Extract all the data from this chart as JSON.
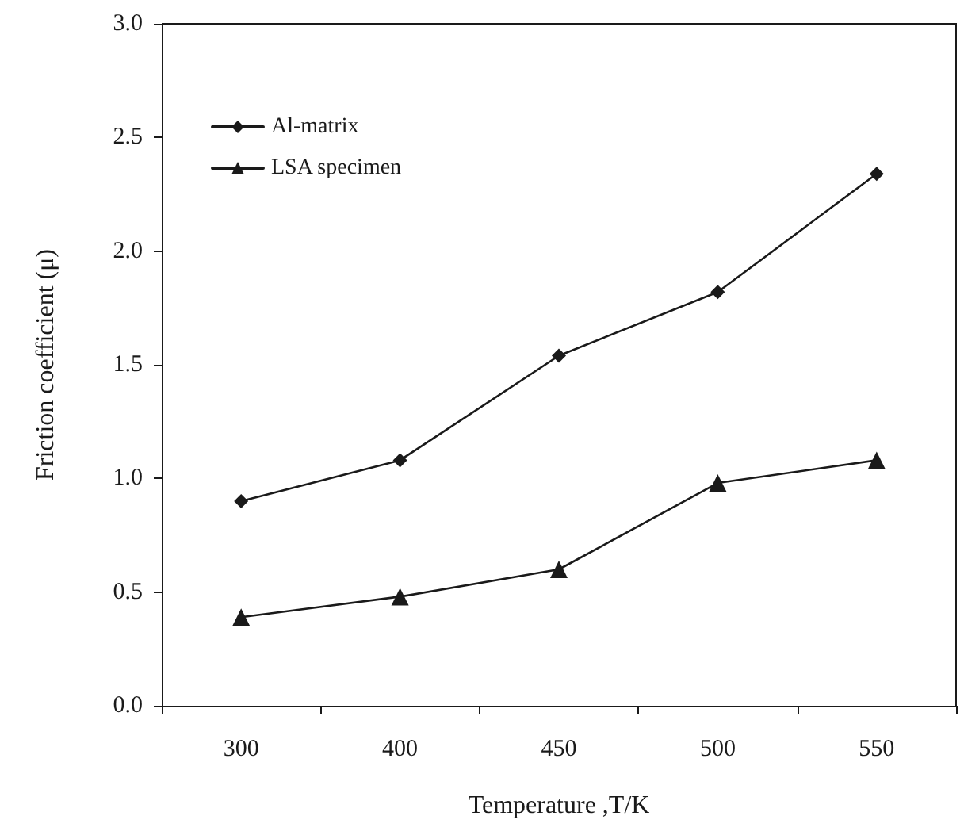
{
  "chart_data": {
    "type": "line",
    "xlabel": "Temperature ,T/K",
    "ylabel": "Friction coefficient (μ)",
    "categories": [
      "300",
      "400",
      "450",
      "500",
      "550"
    ],
    "series": [
      {
        "name": "Al-matrix",
        "color": "#1a1a1a",
        "marker": "diamond",
        "values": [
          0.9,
          1.08,
          1.54,
          1.82,
          2.34
        ]
      },
      {
        "name": "LSA specimen",
        "color": "#1a1a1a",
        "marker": "triangle",
        "values": [
          0.39,
          0.48,
          0.6,
          0.98,
          1.08
        ]
      }
    ],
    "ylim": [
      0,
      3
    ],
    "yticks": [
      {
        "value": 0,
        "label": "0.0"
      },
      0.5,
      {
        "value": 1,
        "label": "1.0"
      },
      1.5,
      {
        "value": 2,
        "label": "2.0"
      },
      2.5,
      {
        "value": 3,
        "label": "3.0"
      }
    ],
    "grid": false,
    "legend": "top left",
    "line_style": "solid"
  }
}
